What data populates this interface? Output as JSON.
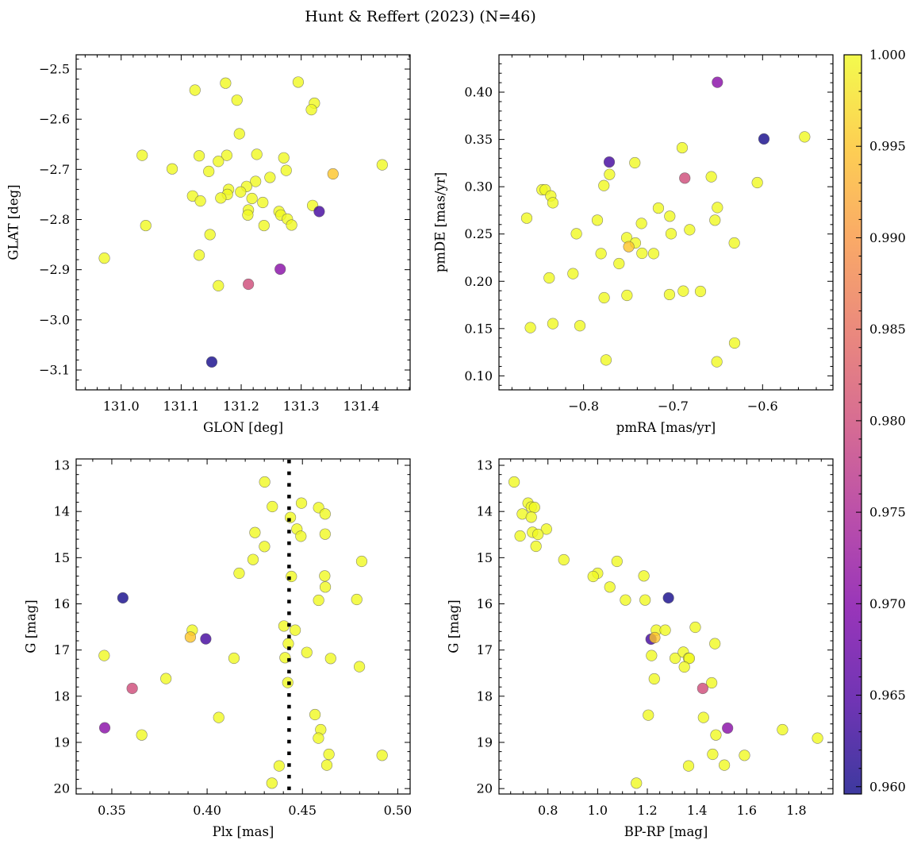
{
  "title": "Hunt & Reffert (2023) (N=46)",
  "colormap": {
    "name": "plasma",
    "stops": [
      "#0d0887",
      "#4c02a1",
      "#7e03a8",
      "#a92395",
      "#cc4778",
      "#e56b5d",
      "#f89441",
      "#fdc328",
      "#f0f921"
    ],
    "vmin": 0.9596,
    "vmax": 1.0,
    "ticks": [
      0.96,
      0.965,
      0.97,
      0.975,
      0.98,
      0.985,
      0.99,
      0.995,
      1.0
    ],
    "tick_labels": [
      "0.960",
      "0.965",
      "0.970",
      "0.975",
      "0.980",
      "0.985",
      "0.990",
      "0.995",
      "1.000"
    ],
    "minor_step": 0.001
  },
  "chart_data": [
    {
      "type": "scatter",
      "xlabel": "GLON [deg]",
      "ylabel": "GLAT [deg]",
      "xlim": [
        130.925,
        131.4815
      ],
      "ylim": [
        -3.1396,
        -2.4715
      ],
      "invert_y": false,
      "xticks": [
        131.0,
        131.1,
        131.2,
        131.3,
        131.4
      ],
      "xtick_labels": [
        "131.0",
        "131.1",
        "131.2",
        "131.3",
        "131.4"
      ],
      "yticks": [
        -3.1,
        -3.0,
        -2.9,
        -2.8,
        -2.7,
        -2.6,
        -2.5
      ],
      "ytick_labels": [
        "−3.1",
        "−3.0",
        "−2.9",
        "−2.8",
        "−2.7",
        "−2.6",
        "−2.5"
      ],
      "xminor": 0.02,
      "yminor": 0.02,
      "points": [
        [
          131.123,
          -2.542,
          1
        ],
        [
          131.174,
          -2.528,
          1
        ],
        [
          131.193,
          -2.562,
          1
        ],
        [
          131.295,
          -2.526,
          1
        ],
        [
          131.322,
          -2.568,
          1
        ],
        [
          131.317,
          -2.581,
          1
        ],
        [
          131.197,
          -2.629,
          1
        ],
        [
          131.035,
          -2.672,
          1
        ],
        [
          131.13,
          -2.673,
          1
        ],
        [
          131.176,
          -2.672,
          1
        ],
        [
          131.162,
          -2.684,
          1
        ],
        [
          131.226,
          -2.67,
          1
        ],
        [
          131.271,
          -2.677,
          1
        ],
        [
          131.085,
          -2.699,
          1
        ],
        [
          131.146,
          -2.704,
          1
        ],
        [
          131.275,
          -2.702,
          1
        ],
        [
          131.435,
          -2.691,
          1
        ],
        [
          131.248,
          -2.716,
          1
        ],
        [
          131.224,
          -2.724,
          1
        ],
        [
          131.209,
          -2.734,
          1
        ],
        [
          131.179,
          -2.74,
          1
        ],
        [
          131.177,
          -2.75,
          1
        ],
        [
          131.199,
          -2.745,
          1
        ],
        [
          131.119,
          -2.753,
          1
        ],
        [
          131.132,
          -2.763,
          1
        ],
        [
          131.166,
          -2.757,
          1
        ],
        [
          131.218,
          -2.758,
          1
        ],
        [
          131.236,
          -2.766,
          1
        ],
        [
          131.319,
          -2.772,
          1
        ],
        [
          131.212,
          -2.781,
          1
        ],
        [
          131.211,
          -2.791,
          1
        ],
        [
          131.263,
          -2.784,
          1
        ],
        [
          131.266,
          -2.791,
          1
        ],
        [
          131.277,
          -2.799,
          1
        ],
        [
          131.284,
          -2.811,
          1
        ],
        [
          131.238,
          -2.812,
          1
        ],
        [
          131.041,
          -2.812,
          1
        ],
        [
          131.148,
          -2.83,
          1
        ],
        [
          130.972,
          -2.877,
          1
        ],
        [
          131.13,
          -2.871,
          1
        ],
        [
          131.162,
          -2.932,
          1
        ],
        [
          131.353,
          -2.709,
          0.995
        ],
        [
          131.212,
          -2.929,
          0.98
        ],
        [
          131.265,
          -2.899,
          0.9706
        ],
        [
          131.33,
          -2.784,
          0.9637
        ],
        [
          131.151,
          -3.084,
          0.96
        ]
      ]
    },
    {
      "type": "scatter",
      "xlabel": "pmRA [mas/yr]",
      "ylabel": "pmDE [mas/yr]",
      "xlim": [
        -0.8945,
        -0.5214
      ],
      "ylim": [
        0.0852,
        0.4395
      ],
      "invert_y": false,
      "xticks": [
        -0.8,
        -0.7,
        -0.6
      ],
      "xtick_labels": [
        "−0.8",
        "−0.7",
        "−0.6"
      ],
      "yticks": [
        0.1,
        0.15,
        0.2,
        0.25,
        0.3,
        0.35,
        0.4
      ],
      "ytick_labels": [
        "0.10",
        "0.15",
        "0.20",
        "0.25",
        "0.30",
        "0.35",
        "0.40"
      ],
      "xminor": 0.02,
      "yminor": 0.01,
      "points": [
        [
          -0.553,
          0.3527,
          1
        ],
        [
          -0.6898,
          0.3412,
          1
        ],
        [
          -0.7427,
          0.3253,
          1
        ],
        [
          -0.771,
          0.313,
          1
        ],
        [
          -0.6573,
          0.3105,
          1
        ],
        [
          -0.6059,
          0.3043,
          1
        ],
        [
          -0.7773,
          0.3012,
          1
        ],
        [
          -0.8464,
          0.2968,
          1
        ],
        [
          -0.8428,
          0.2968,
          1
        ],
        [
          -0.8366,
          0.2903,
          1
        ],
        [
          -0.8343,
          0.283,
          1
        ],
        [
          -0.6505,
          0.278,
          1
        ],
        [
          -0.7164,
          0.2774,
          1
        ],
        [
          -0.7037,
          0.2688,
          1
        ],
        [
          -0.8635,
          0.2668,
          1
        ],
        [
          -0.7846,
          0.2646,
          1
        ],
        [
          -0.6532,
          0.2646,
          1
        ],
        [
          -0.7353,
          0.2612,
          1
        ],
        [
          -0.808,
          0.2503,
          1
        ],
        [
          -0.7022,
          0.2503,
          1
        ],
        [
          -0.6815,
          0.2545,
          1
        ],
        [
          -0.7518,
          0.2461,
          1
        ],
        [
          -0.7421,
          0.2405,
          1
        ],
        [
          -0.6316,
          0.2405,
          1
        ],
        [
          -0.7805,
          0.2293,
          1
        ],
        [
          -0.7347,
          0.2296,
          1
        ],
        [
          -0.7217,
          0.2293,
          1
        ],
        [
          -0.7604,
          0.2187,
          1
        ],
        [
          -0.8384,
          0.2036,
          1
        ],
        [
          -0.8118,
          0.2081,
          1
        ],
        [
          -0.777,
          0.1826,
          1
        ],
        [
          -0.7515,
          0.1851,
          1
        ],
        [
          -0.704,
          0.186,
          1
        ],
        [
          -0.6886,
          0.1896,
          1
        ],
        [
          -0.6694,
          0.1893,
          1
        ],
        [
          -0.8594,
          0.151,
          1
        ],
        [
          -0.8343,
          0.1552,
          1
        ],
        [
          -0.8041,
          0.153,
          1
        ],
        [
          -0.6313,
          0.1347,
          1
        ],
        [
          -0.7749,
          0.1168,
          1
        ],
        [
          -0.6511,
          0.1149,
          1
        ],
        [
          -0.7495,
          0.2366,
          0.995
        ],
        [
          -0.6869,
          0.3091,
          0.98
        ],
        [
          -0.6505,
          0.4104,
          0.9706
        ],
        [
          -0.7713,
          0.3261,
          0.9637
        ],
        [
          -0.5985,
          0.3505,
          0.96
        ]
      ]
    },
    {
      "type": "scatter",
      "xlabel": "Plx [mas]",
      "ylabel": "G [mag]",
      "xlim": [
        0.3313,
        0.5065
      ],
      "ylim": [
        12.862,
        20.118
      ],
      "invert_y": true,
      "xticks": [
        0.35,
        0.4,
        0.45,
        0.5
      ],
      "xtick_labels": [
        "0.35",
        "0.40",
        "0.45",
        "0.50"
      ],
      "yticks": [
        13,
        14,
        15,
        16,
        17,
        18,
        19,
        20
      ],
      "ytick_labels": [
        "13",
        "14",
        "15",
        "16",
        "17",
        "18",
        "19",
        "20"
      ],
      "xminor": 0.01,
      "yminor": 0.2,
      "vline": 0.443,
      "points": [
        [
          0.4302,
          13.361,
          1
        ],
        [
          0.4342,
          13.894,
          1
        ],
        [
          0.4495,
          13.819,
          1
        ],
        [
          0.4585,
          13.917,
          1
        ],
        [
          0.4619,
          14.054,
          1
        ],
        [
          0.4437,
          14.129,
          1
        ],
        [
          0.4251,
          14.456,
          1
        ],
        [
          0.4471,
          14.381,
          1
        ],
        [
          0.4492,
          14.536,
          1
        ],
        [
          0.4619,
          14.49,
          1
        ],
        [
          0.4301,
          14.759,
          1
        ],
        [
          0.4241,
          15.04,
          1
        ],
        [
          0.4811,
          15.08,
          1
        ],
        [
          0.4168,
          15.338,
          1
        ],
        [
          0.4442,
          15.407,
          1
        ],
        [
          0.4617,
          15.395,
          1
        ],
        [
          0.462,
          15.636,
          1
        ],
        [
          0.4585,
          15.923,
          1
        ],
        [
          0.4785,
          15.905,
          1
        ],
        [
          0.3922,
          16.57,
          1
        ],
        [
          0.4403,
          16.48,
          1
        ],
        [
          0.4462,
          16.57,
          1
        ],
        [
          0.4426,
          16.862,
          1
        ],
        [
          0.346,
          17.12,
          1
        ],
        [
          0.4141,
          17.178,
          1
        ],
        [
          0.4409,
          17.166,
          1
        ],
        [
          0.4523,
          17.052,
          1
        ],
        [
          0.4648,
          17.183,
          1
        ],
        [
          0.4799,
          17.361,
          1
        ],
        [
          0.3784,
          17.619,
          1
        ],
        [
          0.4423,
          17.705,
          1
        ],
        [
          0.4566,
          18.398,
          1
        ],
        [
          0.4061,
          18.461,
          1
        ],
        [
          0.3657,
          18.84,
          1
        ],
        [
          0.4596,
          18.725,
          1
        ],
        [
          0.4584,
          18.908,
          1
        ],
        [
          0.4639,
          19.258,
          1
        ],
        [
          0.4918,
          19.281,
          1
        ],
        [
          0.4628,
          19.493,
          1
        ],
        [
          0.4378,
          19.51,
          1
        ],
        [
          0.434,
          19.883,
          1
        ],
        [
          0.3912,
          16.719,
          0.995
        ],
        [
          0.3607,
          17.831,
          0.98
        ],
        [
          0.3463,
          18.685,
          0.9706
        ],
        [
          0.3993,
          16.759,
          0.9637
        ],
        [
          0.3558,
          15.871,
          0.96
        ]
      ]
    },
    {
      "type": "scatter",
      "xlabel": "BP-RP [mag]",
      "ylabel": "G [mag]",
      "xlim": [
        0.603,
        1.947
      ],
      "ylim": [
        12.862,
        20.118
      ],
      "invert_y": true,
      "xticks": [
        0.8,
        1.0,
        1.2,
        1.4,
        1.6,
        1.8
      ],
      "xtick_labels": [
        "0.8",
        "1.0",
        "1.2",
        "1.4",
        "1.6",
        "1.8"
      ],
      "yticks": [
        13,
        14,
        15,
        16,
        17,
        18,
        19,
        20
      ],
      "ytick_labels": [
        "13",
        "14",
        "15",
        "16",
        "17",
        "18",
        "19",
        "20"
      ],
      "xminor": 0.05,
      "yminor": 0.2,
      "points": [
        [
          0.664,
          13.361,
          1
        ],
        [
          0.72,
          13.819,
          1
        ],
        [
          0.733,
          13.905,
          1
        ],
        [
          0.746,
          13.911,
          1
        ],
        [
          0.697,
          14.054,
          1
        ],
        [
          0.733,
          14.123,
          1
        ],
        [
          0.794,
          14.381,
          1
        ],
        [
          0.738,
          14.45,
          1
        ],
        [
          0.76,
          14.496,
          1
        ],
        [
          0.688,
          14.53,
          1
        ],
        [
          0.752,
          14.754,
          1
        ],
        [
          0.864,
          15.046,
          1
        ],
        [
          1.078,
          15.08,
          1
        ],
        [
          1.0,
          15.338,
          1
        ],
        [
          0.982,
          15.407,
          1
        ],
        [
          1.186,
          15.395,
          1
        ],
        [
          1.049,
          15.636,
          1
        ],
        [
          1.112,
          15.917,
          1
        ],
        [
          1.191,
          15.917,
          1
        ],
        [
          1.393,
          16.507,
          1
        ],
        [
          1.236,
          16.57,
          1
        ],
        [
          1.272,
          16.57,
          1
        ],
        [
          1.472,
          16.862,
          1
        ],
        [
          1.217,
          17.12,
          1
        ],
        [
          1.312,
          17.178,
          1
        ],
        [
          1.345,
          17.046,
          1
        ],
        [
          1.366,
          17.178,
          1
        ],
        [
          1.369,
          17.18,
          1
        ],
        [
          1.349,
          17.367,
          1
        ],
        [
          1.228,
          17.625,
          1
        ],
        [
          1.459,
          17.711,
          1
        ],
        [
          1.204,
          18.41,
          1
        ],
        [
          1.426,
          18.461,
          1
        ],
        [
          1.744,
          18.725,
          1
        ],
        [
          1.885,
          18.908,
          1
        ],
        [
          1.476,
          18.84,
          1
        ],
        [
          1.463,
          19.258,
          1
        ],
        [
          1.591,
          19.281,
          1
        ],
        [
          1.51,
          19.493,
          1
        ],
        [
          1.366,
          19.51,
          1
        ],
        [
          1.156,
          19.883,
          1
        ],
        [
          1.215,
          16.765,
          0.9637
        ],
        [
          1.23,
          16.731,
          0.995
        ],
        [
          1.423,
          17.831,
          0.98
        ],
        [
          1.523,
          18.691,
          0.9706
        ],
        [
          1.285,
          15.871,
          0.96
        ]
      ]
    }
  ]
}
